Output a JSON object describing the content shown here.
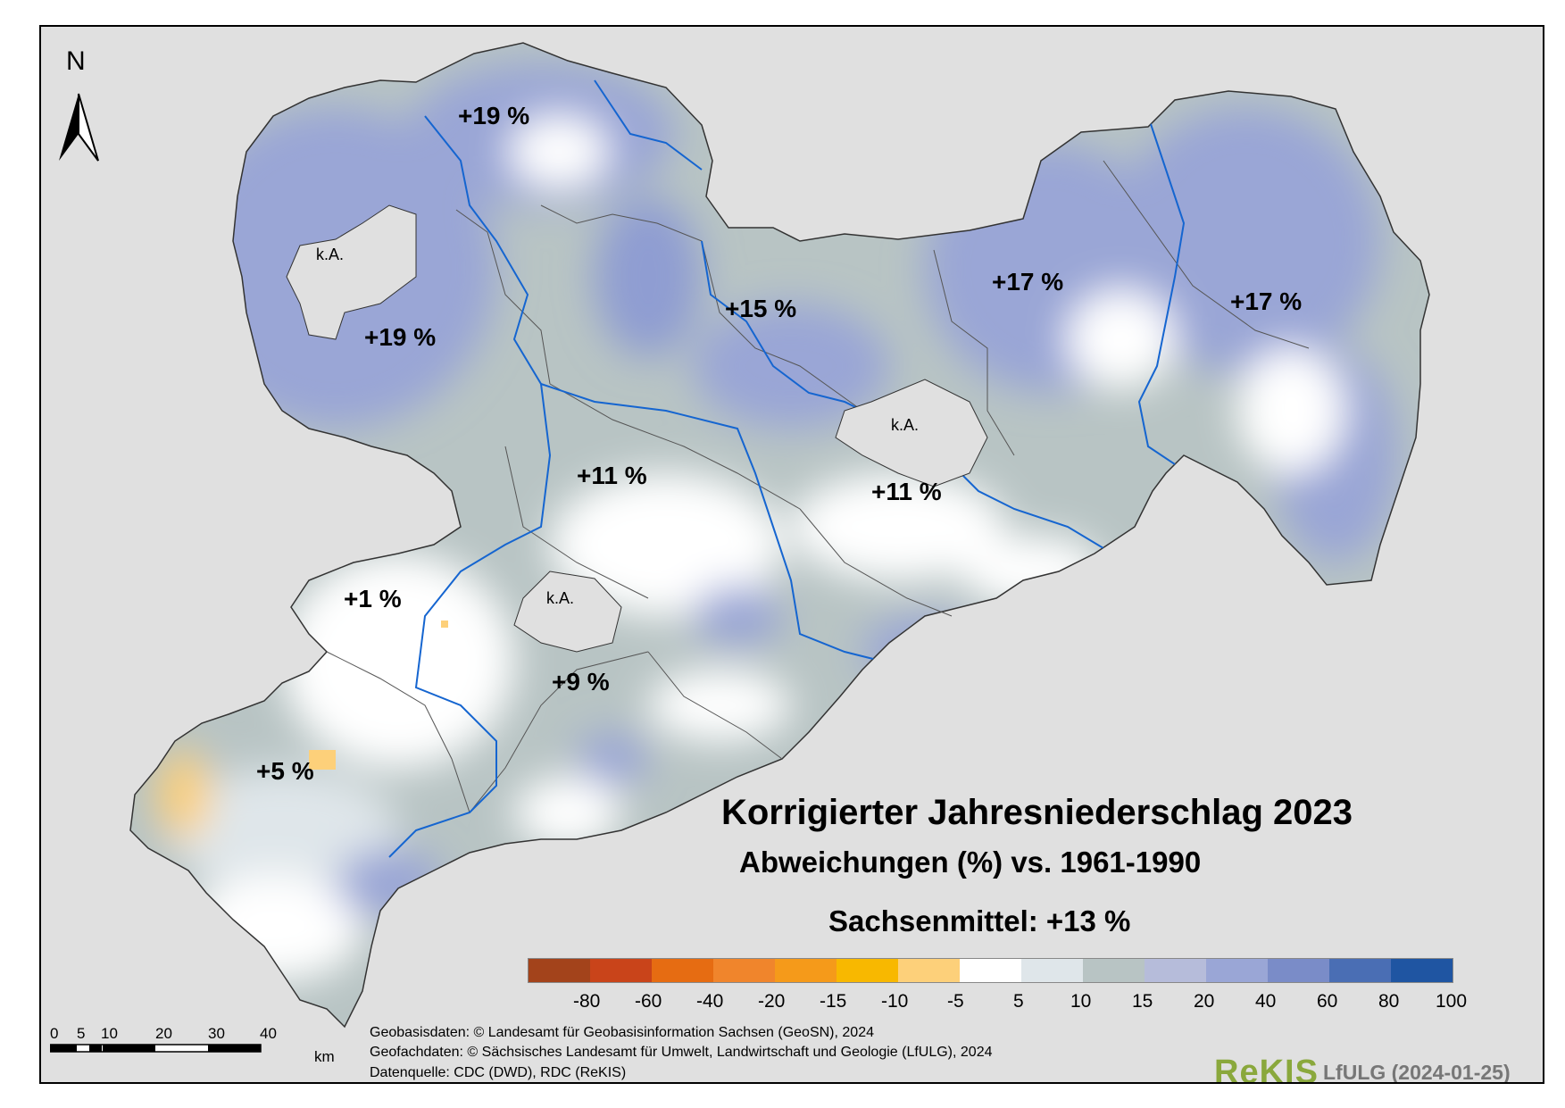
{
  "title": "Korrigierter Jahresniederschlag 2023",
  "subtitle": "Abweichungen (%) vs. 1961-1990",
  "mean": "Sachsenmittel: +13 %",
  "regions": [
    {
      "label": "+19 %"
    },
    {
      "label": "+19 %"
    },
    {
      "label": "+15 %"
    },
    {
      "label": "+17 %"
    },
    {
      "label": "+17 %"
    },
    {
      "label": "+11 %"
    },
    {
      "label": "+11 %"
    },
    {
      "label": "+1 %"
    },
    {
      "label": "+9 %"
    },
    {
      "label": "+5 %"
    }
  ],
  "no_data": [
    {
      "label": "k.A."
    },
    {
      "label": "k.A."
    },
    {
      "label": "k.A."
    }
  ],
  "legend": {
    "colors": [
      "#a3431b",
      "#c9441a",
      "#e66c12",
      "#f0852c",
      "#f59a1a",
      "#f8b800",
      "#fdd07a",
      "#ffffff",
      "#dfe6ea",
      "#b8c4c4",
      "#b6bcda",
      "#9aa6d6",
      "#7a8cc8",
      "#4a6eb4",
      "#1f55a2"
    ],
    "ticks": [
      "-80",
      "-60",
      "-40",
      "-20",
      "-15",
      "-10",
      "-5",
      "5",
      "10",
      "15",
      "20",
      "40",
      "60",
      "80",
      "100"
    ]
  },
  "north": "N",
  "scale": {
    "numbers": [
      "0",
      "5",
      "10",
      "20",
      "30",
      "40"
    ],
    "unit": "km"
  },
  "credits": [
    "Geobasisdaten: © Landesamt für Geobasisinformation Sachsen (GeoSN), 2024",
    "Geofachdaten: © Sächsisches Landesamt für Umwelt, Landwirtschaft und Geologie (LfULG), 2024",
    "Datenquelle: CDC (DWD), RDC (ReKIS)"
  ],
  "logo": "ReKIS",
  "logo_org": "LfULG (2024-01-25)",
  "colors": {
    "river": "#1565d0",
    "border": "#555555",
    "background": "#e0e0e0"
  }
}
